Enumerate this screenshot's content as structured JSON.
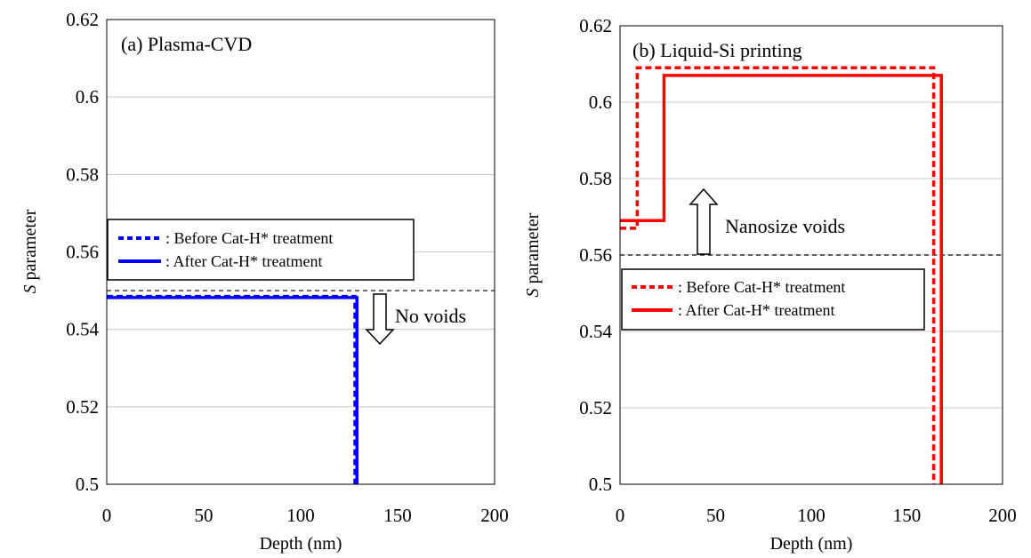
{
  "chart_data": [
    {
      "type": "line",
      "title": "(a) Plasma-CVD",
      "xlabel": "Depth (nm)",
      "ylabel_italic": "S",
      "ylabel_rest": " parameter",
      "xlim": [
        0,
        200
      ],
      "ylim": [
        0.5,
        0.62
      ],
      "xticks": [
        0,
        50,
        100,
        150,
        200
      ],
      "yticks": [
        0.5,
        0.52,
        0.54,
        0.56,
        0.58,
        0.6,
        0.62
      ],
      "ytick_labels": [
        "0.5",
        "0.52",
        "0.54",
        "0.56",
        "0.58",
        "0.6",
        "0.62"
      ],
      "xtick_labels": [
        "0",
        "50",
        "100",
        "150",
        "200"
      ],
      "grid": "horizontal",
      "reference_line": 0.55,
      "series": [
        {
          "name": ": Before Cat-H* treatment",
          "color": "#0000ff",
          "dash": "dashed",
          "x": [
            0,
            128,
            128
          ],
          "y": [
            0.5485,
            0.5485,
            0.5
          ]
        },
        {
          "name": ": After Cat-H* treatment",
          "color": "#0000ff",
          "dash": "solid",
          "x": [
            0,
            129,
            129
          ],
          "y": [
            0.5482,
            0.5482,
            0.5
          ]
        }
      ],
      "legend_position": "center-left",
      "annotation": {
        "text": "No voids",
        "arrow": "down"
      }
    },
    {
      "type": "line",
      "title": "(b) Liquid-Si printing",
      "xlabel": "Depth (nm)",
      "ylabel_italic": "S",
      "ylabel_rest": " parameter",
      "xlim": [
        0,
        200
      ],
      "ylim": [
        0.5,
        0.62
      ],
      "xticks": [
        0,
        50,
        100,
        150,
        200
      ],
      "yticks": [
        0.5,
        0.52,
        0.54,
        0.56,
        0.58,
        0.6,
        0.62
      ],
      "ytick_labels": [
        "0.5",
        "0.52",
        "0.54",
        "0.56",
        "0.58",
        "0.6",
        "0.62"
      ],
      "xtick_labels": [
        "0",
        "50",
        "100",
        "150",
        "200"
      ],
      "grid": "horizontal",
      "reference_line": 0.56,
      "series": [
        {
          "name": ": Before Cat-H* treatment",
          "color": "#ff0000",
          "dash": "dashed",
          "x": [
            0,
            9,
            9,
            164,
            164
          ],
          "y": [
            0.567,
            0.567,
            0.609,
            0.609,
            0.5
          ]
        },
        {
          "name": ": After Cat-H* treatment",
          "color": "#ff0000",
          "dash": "solid",
          "x": [
            0,
            23,
            23,
            168,
            168
          ],
          "y": [
            0.569,
            0.569,
            0.607,
            0.607,
            0.5
          ]
        }
      ],
      "legend_position": "center-left",
      "annotation": {
        "text": "Nanosize voids",
        "arrow": "up"
      }
    }
  ]
}
